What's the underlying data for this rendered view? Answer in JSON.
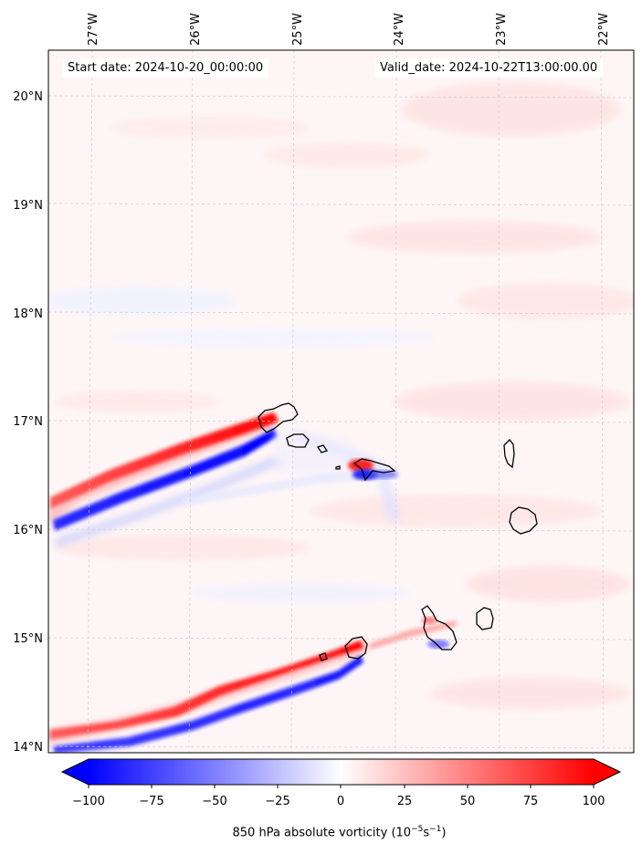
{
  "map": {
    "lon_labels": [
      "27°W",
      "26°W",
      "25°W",
      "24°W",
      "23°W",
      "22°W"
    ],
    "lat_labels": [
      "20°N",
      "19°N",
      "18°N",
      "17°N",
      "16°N",
      "15°N",
      "14°N"
    ]
  },
  "info": {
    "start": "Start date: 2024-10-20_00:00:00",
    "valid": "Valid_date: 2024-10-22T13:00:00.00"
  },
  "colorbar": {
    "ticks": [
      "−100",
      "−75",
      "−50",
      "−25",
      "0",
      "25",
      "50",
      "75",
      "100"
    ],
    "label_main": "850 hPa absolute vorticity (10",
    "label_exp1": "−5",
    "label_mid": "s",
    "label_exp2": "−1",
    "label_end": ")",
    "min_color": "#0000ff",
    "mid_color": "#ffffff",
    "max_color": "#ff0000"
  }
}
